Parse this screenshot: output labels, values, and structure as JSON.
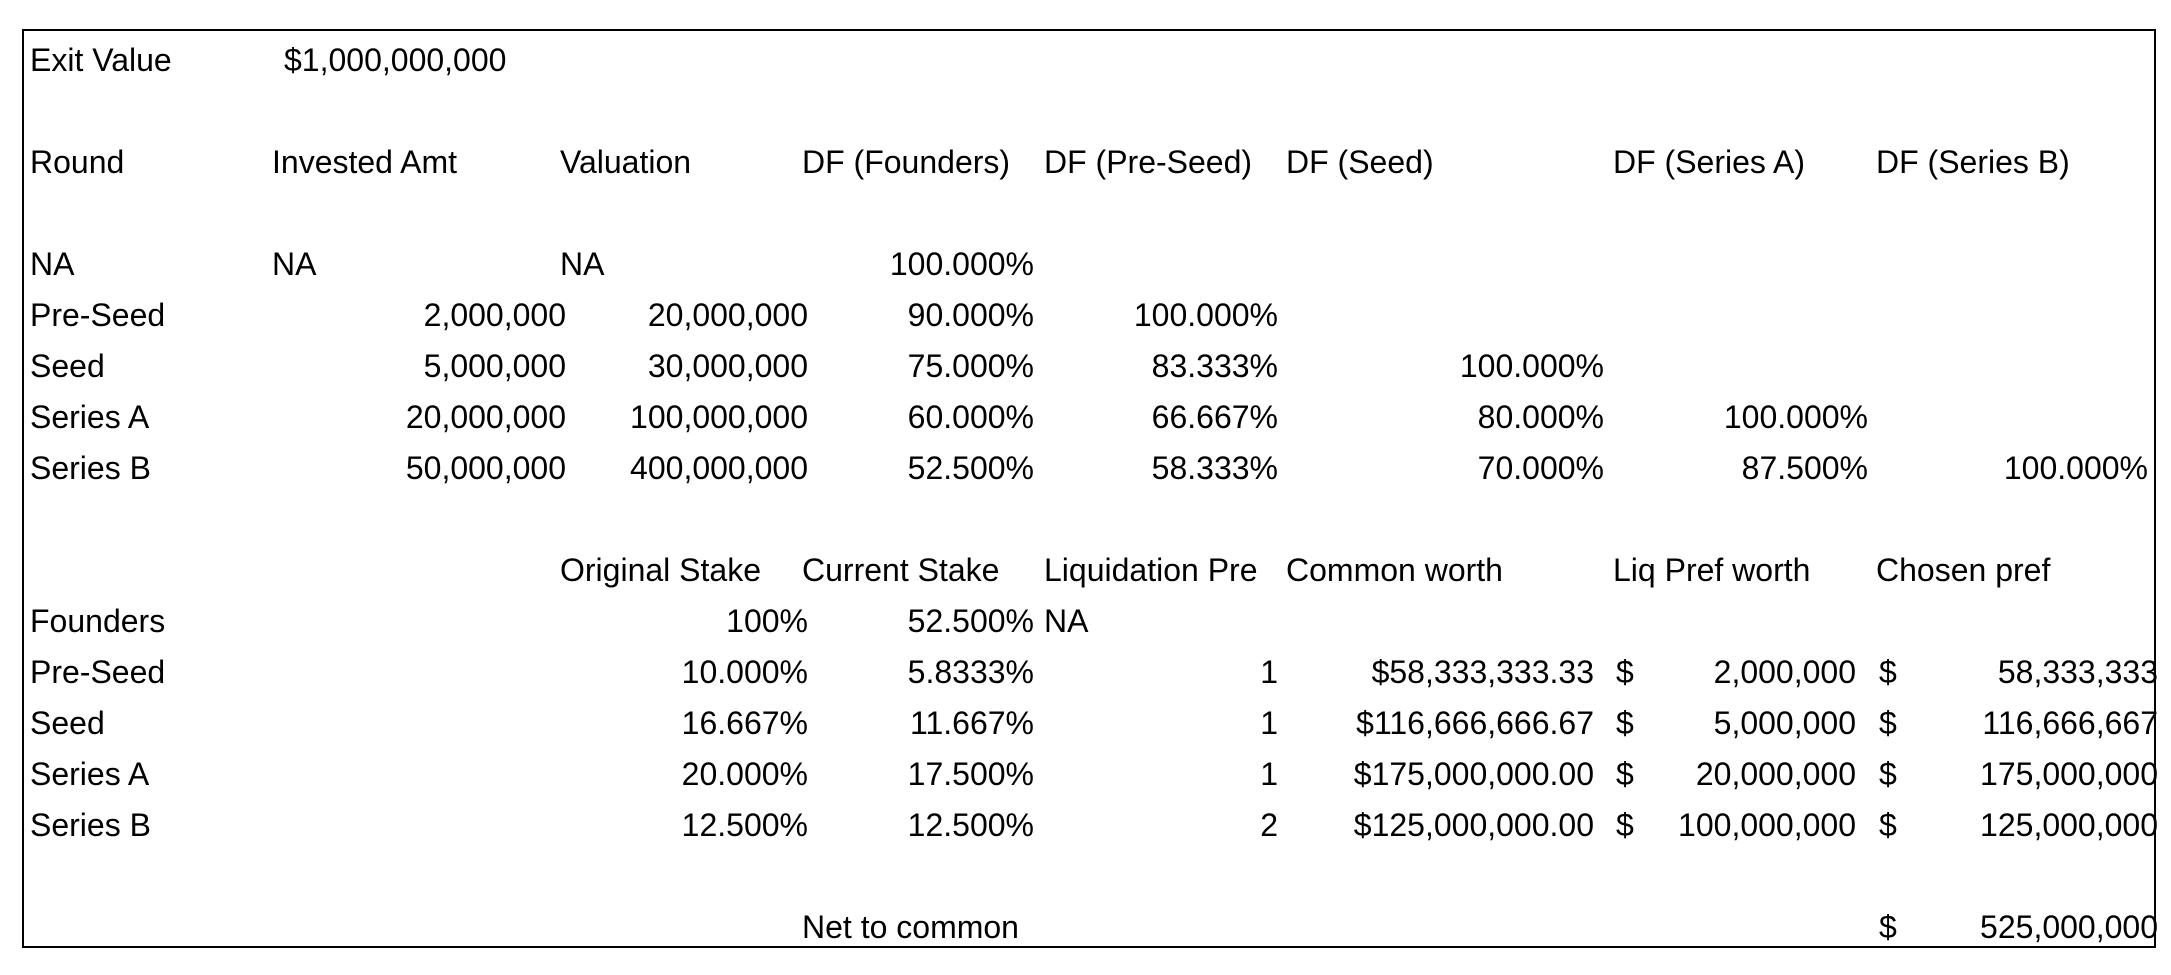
{
  "exit": {
    "label": "Exit Value",
    "value": "$1,000,000,000"
  },
  "dilution": {
    "headers": [
      "Round",
      "Invested Amt",
      "Valuation",
      "DF (Founders)",
      "DF (Pre-Seed)",
      "DF (Seed)",
      "DF (Series A)",
      "DF (Series B)"
    ],
    "rows": [
      {
        "round": "NA",
        "invested": "NA",
        "valuation": "NA",
        "df_founders": "100.000%",
        "df_preseed": "",
        "df_seed": "",
        "df_seriesa": "",
        "df_seriesb": ""
      },
      {
        "round": "Pre-Seed",
        "invested": "2,000,000",
        "valuation": "20,000,000",
        "df_founders": "90.000%",
        "df_preseed": "100.000%",
        "df_seed": "",
        "df_seriesa": "",
        "df_seriesb": ""
      },
      {
        "round": "Seed",
        "invested": "5,000,000",
        "valuation": "30,000,000",
        "df_founders": "75.000%",
        "df_preseed": "83.333%",
        "df_seed": "100.000%",
        "df_seriesa": "",
        "df_seriesb": ""
      },
      {
        "round": "Series A",
        "invested": "20,000,000",
        "valuation": "100,000,000",
        "df_founders": "60.000%",
        "df_preseed": "66.667%",
        "df_seed": "80.000%",
        "df_seriesa": "100.000%",
        "df_seriesb": ""
      },
      {
        "round": "Series B",
        "invested": "50,000,000",
        "valuation": "400,000,000",
        "df_founders": "52.500%",
        "df_preseed": "58.333%",
        "df_seed": "70.000%",
        "df_seriesa": "87.500%",
        "df_seriesb": "100.000%"
      }
    ]
  },
  "stakes": {
    "headers": [
      "Original Stake",
      "Current Stake",
      "Liquidation Pre",
      "Common worth",
      "Liq Pref worth",
      "Chosen pref"
    ],
    "rows": [
      {
        "name": "Founders",
        "original": "100%",
        "current": "52.500%",
        "liq_pref": "NA",
        "common_worth": "",
        "liq_pref_worth": "",
        "chosen_pref": ""
      },
      {
        "name": "Pre-Seed",
        "original": "10.000%",
        "current": "5.8333%",
        "liq_pref": "1",
        "common_worth": "$58,333,333.33",
        "liq_pref_worth": "2,000,000",
        "chosen_pref": "58,333,333"
      },
      {
        "name": "Seed",
        "original": "16.667%",
        "current": "11.667%",
        "liq_pref": "1",
        "common_worth": "$116,666,666.67",
        "liq_pref_worth": "5,000,000",
        "chosen_pref": "116,666,667"
      },
      {
        "name": "Series A",
        "original": "20.000%",
        "current": "17.500%",
        "liq_pref": "1",
        "common_worth": "$175,000,000.00",
        "liq_pref_worth": "20,000,000",
        "chosen_pref": "175,000,000"
      },
      {
        "name": "Series B",
        "original": "12.500%",
        "current": "12.500%",
        "liq_pref": "2",
        "common_worth": "$125,000,000.00",
        "liq_pref_worth": "100,000,000",
        "chosen_pref": "125,000,000"
      }
    ],
    "currency_symbol": "$",
    "net_label": "Net to common",
    "net_value": "525,000,000"
  }
}
